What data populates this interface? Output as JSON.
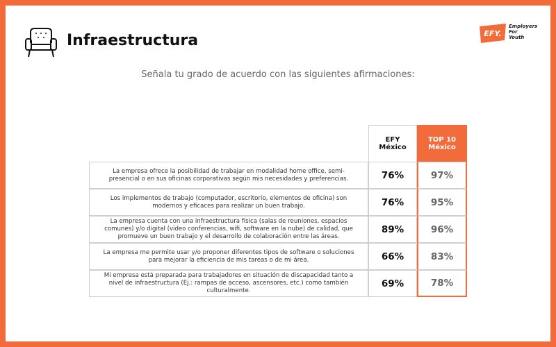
{
  "header": {
    "title": "Infraestructura",
    "logo_mark": "EFY.",
    "logo_tagline": [
      "Employers",
      "For",
      "Youth"
    ]
  },
  "subtitle": "Señala tu grado de acuerdo con las siguientes afirmaciones:",
  "table": {
    "columns": [
      [
        "EFY",
        "México"
      ],
      [
        "TOP 10",
        "México"
      ]
    ],
    "rows": [
      [
        "La empresa ofrece la posibilidad de trabajar en modalidad home office, semi-presencial o en sus oficinas corporativas según mis necesidades y preferencias.",
        "76%",
        "97%"
      ],
      [
        "Los implementos de trabajo (computador, escritorio, elementos de oficina) son modernos y eficaces para realizar un buen trabajo.",
        "76%",
        "95%"
      ],
      [
        "La empresa cuenta con una infraestructura física (salas de reuniones, espacios comunes) y/o digital (video conferencias, wifi, software en la nube) de calidad, que promueve un buen trabajo y el desarrollo de colaboración entre las áreas.",
        "89%",
        "96%"
      ],
      [
        "La empresa me permite usar y/o proponer diferentes tipos de software o soluciones para mejorar la eficiencia de mis tareas o de mi área.",
        "66%",
        "83%"
      ],
      [
        "Mi empresa está preparada para trabajadores en situación de discapacidad tanto a nivel de infraestructura (Ej.: rampas de acceso, ascensores, etc.) como también culturalmente.",
        "69%",
        "78%"
      ]
    ]
  }
}
